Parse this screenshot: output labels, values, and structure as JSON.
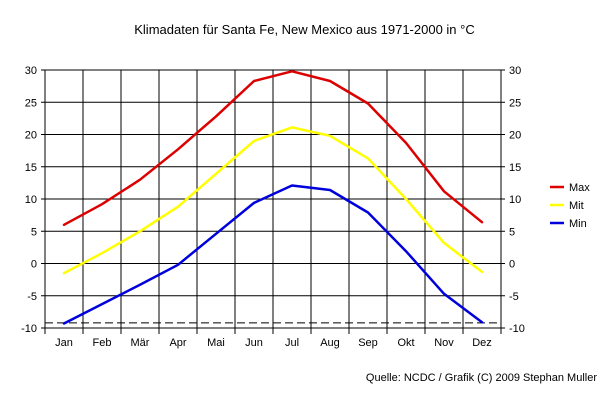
{
  "title": "Klimadaten für Santa Fe, New Mexico aus 1971-2000 in °C",
  "source": "Quelle: NCDC / Grafik (C) 2009 Stephan Muller",
  "chart_data": {
    "type": "line",
    "title": "Klimadaten für Santa Fe, New Mexico aus 1971-2000 in °C",
    "xlabel": "",
    "ylabel": "",
    "categories": [
      "Jan",
      "Feb",
      "Mär",
      "Apr",
      "Mai",
      "Jun",
      "Jul",
      "Aug",
      "Sep",
      "Okt",
      "Nov",
      "Dez"
    ],
    "ylim": [
      -10,
      30
    ],
    "yticks": [
      -10,
      -5,
      0,
      5,
      10,
      15,
      20,
      25,
      30
    ],
    "grid": true,
    "legend": "right",
    "reference_lines": [
      30,
      10,
      -9.2
    ],
    "series": [
      {
        "name": "Max",
        "color": "#dd0000",
        "values": [
          6.0,
          9.2,
          13.0,
          17.7,
          22.8,
          28.3,
          29.8,
          28.3,
          24.8,
          18.7,
          11.2,
          6.4
        ]
      },
      {
        "name": "Mit",
        "color": "#ffff00",
        "values": [
          -1.5,
          1.6,
          5.0,
          8.8,
          13.9,
          19.0,
          21.1,
          19.8,
          16.3,
          10.0,
          3.2,
          -1.3
        ]
      },
      {
        "name": "Min",
        "color": "#0000dd",
        "values": [
          -9.3,
          -6.3,
          -3.3,
          -0.2,
          4.6,
          9.4,
          12.1,
          11.4,
          7.9,
          1.9,
          -4.7,
          -9.1
        ]
      }
    ]
  }
}
